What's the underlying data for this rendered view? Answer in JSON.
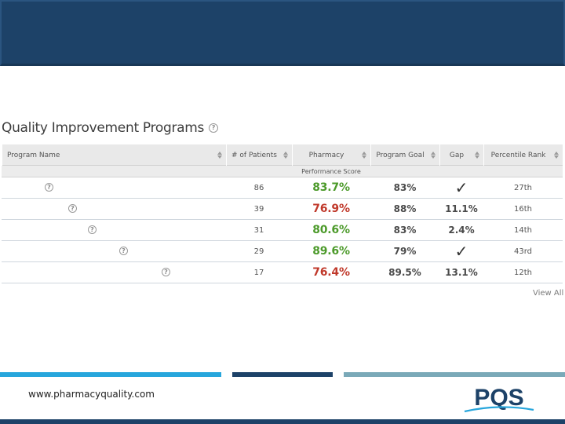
{
  "colors": {
    "banner": "#1d4268",
    "good": "#4c9a2a",
    "bad": "#c0392b",
    "accent_cyan": "#27a6dc",
    "accent_navy": "#1d4268",
    "accent_teal": "#7aa9b8"
  },
  "section": {
    "title": "Quality Improvement Programs",
    "help_glyph": "?"
  },
  "table": {
    "headers": {
      "program_name": "Program Name",
      "patients": "# of Patients",
      "pharmacy": "Pharmacy",
      "program_goal": "Program Goal",
      "gap": "Gap",
      "percentile_rank": "Percentile Rank"
    },
    "subheader": "Performance Score",
    "rows": [
      {
        "patients": "86",
        "pharmacy": "83.7%",
        "status": "good",
        "goal": "83%",
        "gap": "✓",
        "rank": "27th"
      },
      {
        "patients": "39",
        "pharmacy": "76.9%",
        "status": "bad",
        "goal": "88%",
        "gap": "11.1%",
        "rank": "16th"
      },
      {
        "patients": "31",
        "pharmacy": "80.6%",
        "status": "good",
        "goal": "83%",
        "gap": "2.4%",
        "rank": "14th"
      },
      {
        "patients": "29",
        "pharmacy": "89.6%",
        "status": "good",
        "goal": "79%",
        "gap": "✓",
        "rank": "43rd"
      },
      {
        "patients": "17",
        "pharmacy": "76.4%",
        "status": "bad",
        "goal": "89.5%",
        "gap": "13.1%",
        "rank": "12th"
      }
    ]
  },
  "view_all": "View All",
  "footer": {
    "url": "www.pharmacyquality.com",
    "logo_text": "PQS"
  }
}
